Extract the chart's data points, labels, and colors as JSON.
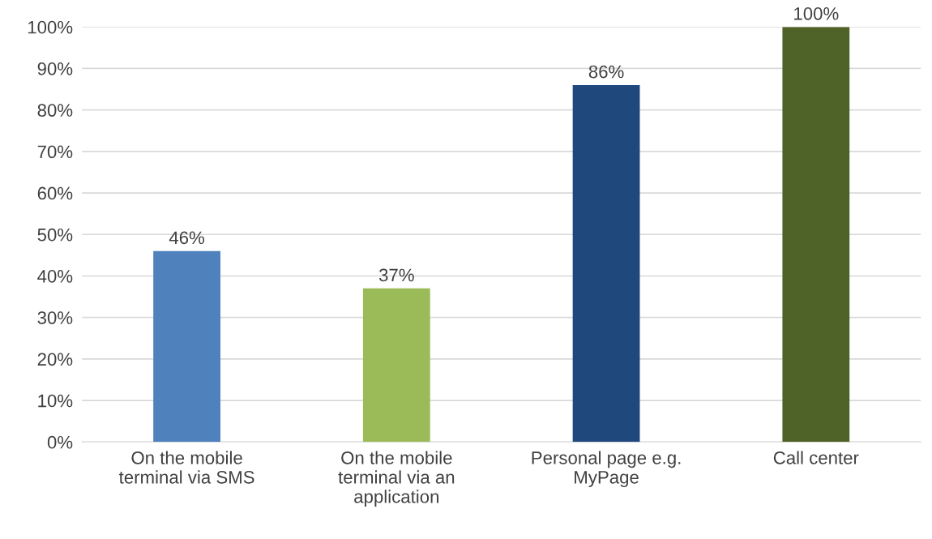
{
  "chart_data": {
    "type": "bar",
    "categories": [
      "On the mobile\nterminal via SMS",
      "On the mobile\nterminal via an\napplication",
      "Personal page e.g.\nMyPage",
      "Call center"
    ],
    "values": [
      46,
      37,
      86,
      100
    ],
    "colors": [
      "#4f81bd",
      "#9bbb59",
      "#1f497d",
      "#4f6228"
    ],
    "value_labels": [
      "46%",
      "37%",
      "86%",
      "100%"
    ],
    "ylim": [
      0,
      100
    ],
    "yticks": [
      {
        "value": 0,
        "label": "0%"
      },
      {
        "value": 10,
        "label": "10%"
      },
      {
        "value": 20,
        "label": "20%"
      },
      {
        "value": 30,
        "label": "30%"
      },
      {
        "value": 40,
        "label": "40%"
      },
      {
        "value": 50,
        "label": "50%"
      },
      {
        "value": 60,
        "label": "60%"
      },
      {
        "value": 70,
        "label": "70%"
      },
      {
        "value": 80,
        "label": "80%"
      },
      {
        "value": 90,
        "label": "90%"
      },
      {
        "value": 100,
        "label": "100%"
      }
    ],
    "grid": "y",
    "legend": false
  }
}
